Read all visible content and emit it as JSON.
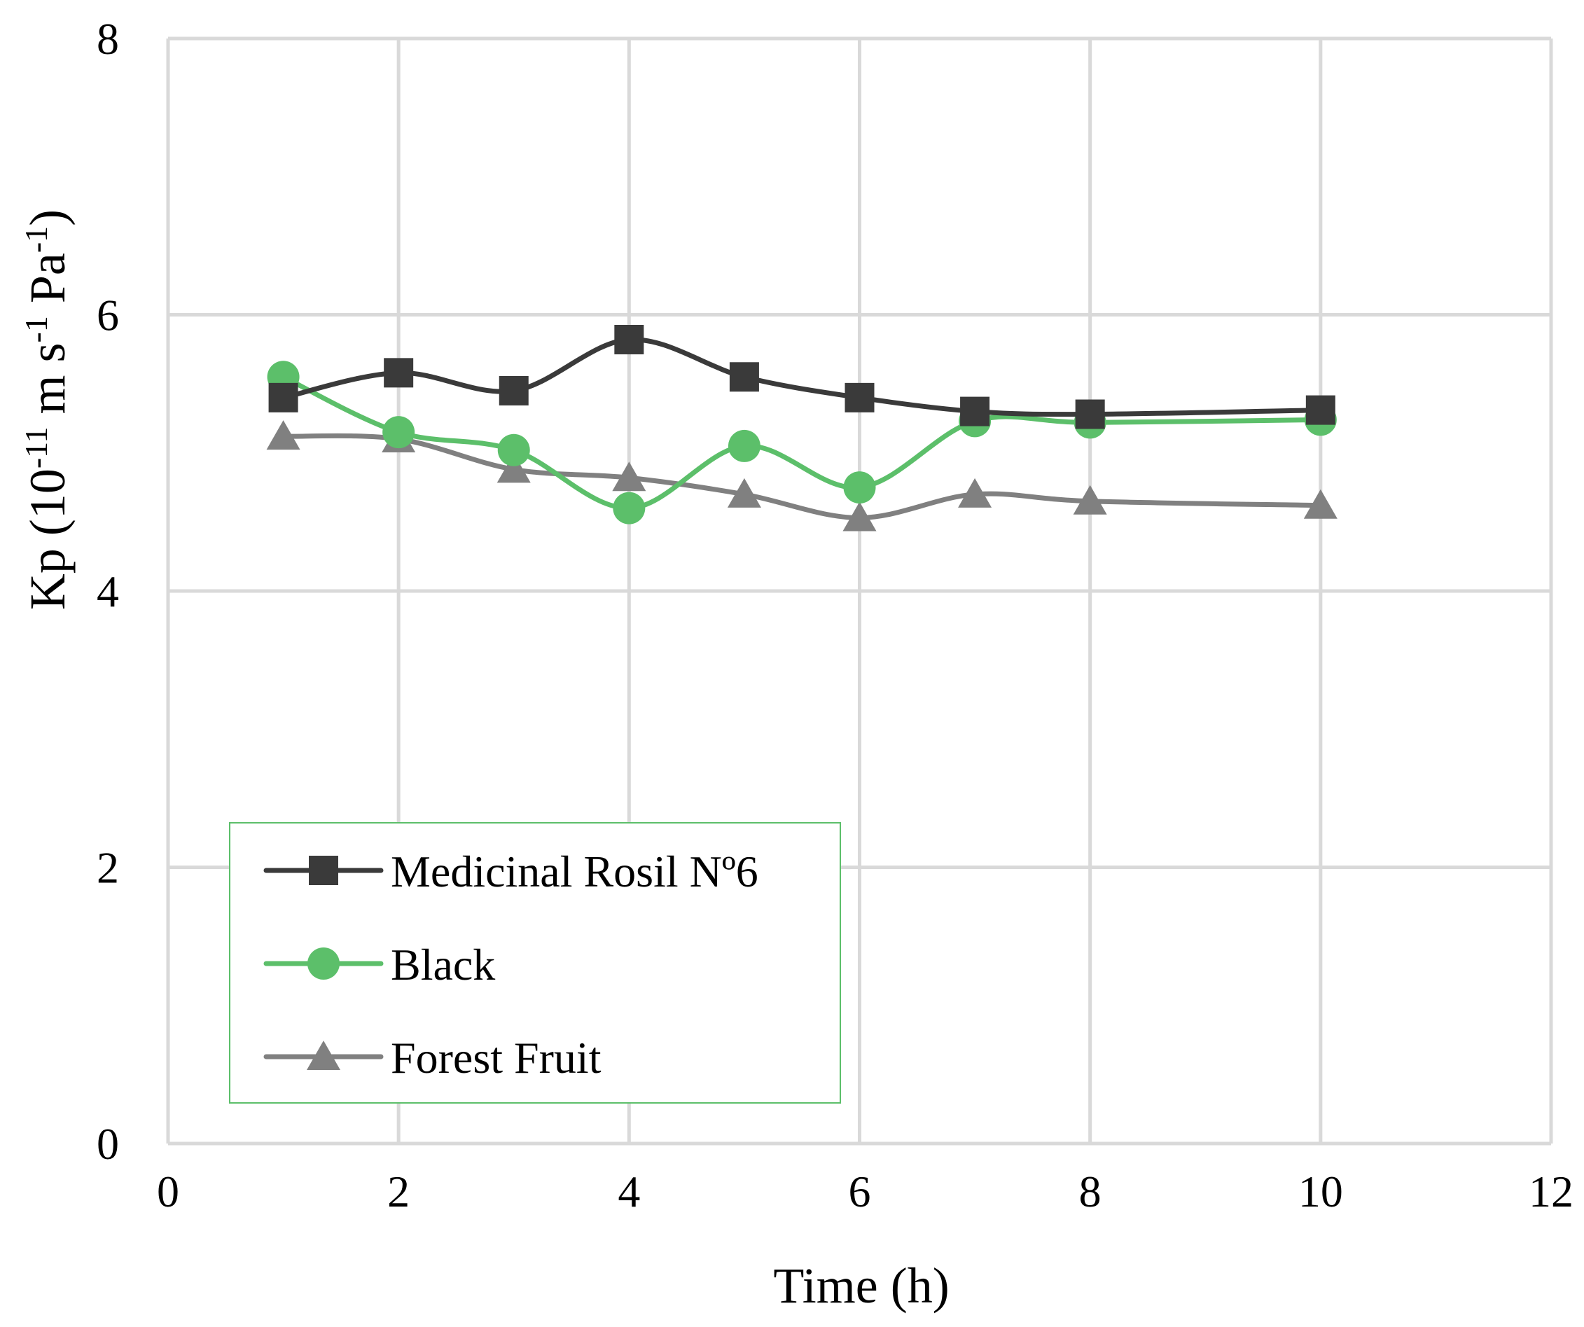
{
  "chart_data": {
    "type": "line",
    "smooth": true,
    "title": "",
    "xlabel": "Time (h)",
    "ylabel": {
      "prefix": "Kp (10",
      "exp1": "-11",
      "mid1": " m s",
      "exp2": "-1",
      "mid2": " Pa",
      "exp3": "-1",
      "suffix": ")"
    },
    "xlim": [
      0,
      12
    ],
    "ylim": [
      0,
      8
    ],
    "x_ticks": [
      0,
      2,
      4,
      6,
      8,
      10,
      12
    ],
    "y_ticks": [
      0,
      2,
      4,
      6,
      8
    ],
    "grid": true,
    "legend_position": "bottom-left",
    "series": [
      {
        "name": "Medicinal Rosil Nº6",
        "marker": "square",
        "color": "#3a3a3a",
        "x": [
          1,
          2,
          3,
          4,
          5,
          6,
          7,
          8,
          10
        ],
        "y": [
          5.4,
          5.58,
          5.45,
          5.82,
          5.55,
          5.4,
          5.3,
          5.28,
          5.31
        ]
      },
      {
        "name": "Black",
        "marker": "circle",
        "color": "#5cbf6a",
        "x": [
          1,
          2,
          3,
          4,
          5,
          6,
          7,
          8,
          10
        ],
        "y": [
          5.55,
          5.15,
          5.02,
          4.6,
          5.05,
          4.75,
          5.23,
          5.22,
          5.24
        ]
      },
      {
        "name": "Forest Fruit",
        "marker": "triangle",
        "color": "#808080",
        "x": [
          1,
          2,
          3,
          4,
          5,
          6,
          7,
          8,
          10
        ],
        "y": [
          5.12,
          5.1,
          4.88,
          4.82,
          4.7,
          4.53,
          4.7,
          4.65,
          4.62
        ]
      }
    ]
  }
}
